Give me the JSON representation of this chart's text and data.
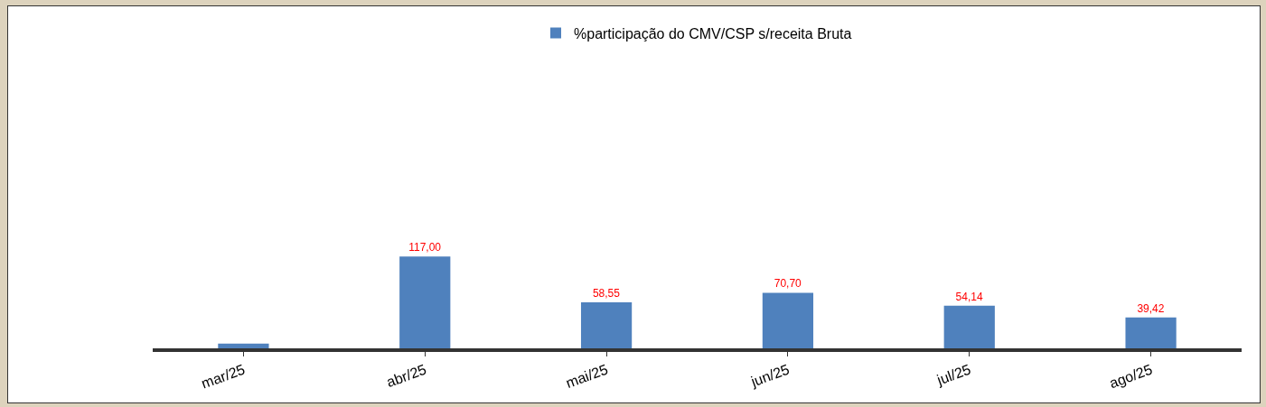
{
  "chart_data": {
    "type": "bar",
    "tick_labels": "x",
    "categories": [
      "mar/25",
      "abr/25",
      "mai/25",
      "jun/25",
      "jul/25",
      "ago/25"
    ],
    "series": [
      {
        "name": "%participação do CMV/CSP s/receita Bruta",
        "color": "#4f81bd",
        "values": [
          6,
          117.0,
          58.55,
          70.7,
          54.14,
          39.42
        ],
        "value_labels": [
          null,
          "117,00",
          "58,55",
          "70,70",
          "54,14",
          "39,42"
        ]
      }
    ],
    "legend": "top"
  }
}
